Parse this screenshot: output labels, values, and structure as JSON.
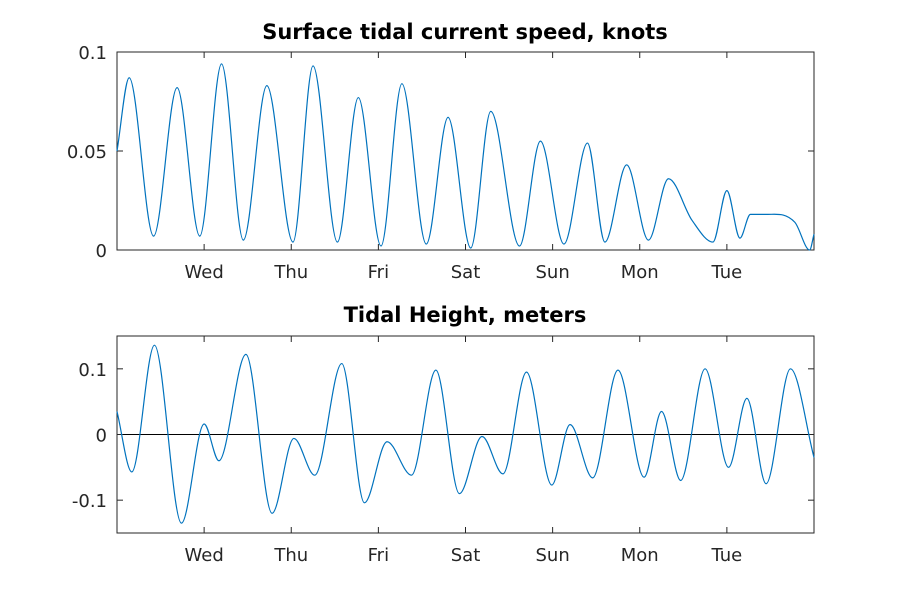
{
  "chart_data": [
    {
      "type": "line",
      "title": "Surface tidal current speed, knots",
      "xlabel": "",
      "ylabel": "",
      "x_unit": "days",
      "xlim": [
        0,
        8
      ],
      "ylim": [
        0,
        0.1
      ],
      "grid": false,
      "x_ticks": [
        {
          "x": 1,
          "label": "Wed"
        },
        {
          "x": 2,
          "label": "Thu"
        },
        {
          "x": 3,
          "label": "Fri"
        },
        {
          "x": 4,
          "label": "Sat"
        },
        {
          "x": 5,
          "label": "Sun"
        },
        {
          "x": 6,
          "label": "Mon"
        },
        {
          "x": 7,
          "label": "Tue"
        }
      ],
      "y_ticks": [
        {
          "y": 0,
          "label": "0"
        },
        {
          "y": 0.05,
          "label": "0.05"
        },
        {
          "y": 0.1,
          "label": "0.1"
        }
      ],
      "color": "#0072bd",
      "series": [
        {
          "x": [
            0,
            0.14,
            0.42,
            0.69,
            0.95,
            1.2,
            1.45,
            1.72,
            2.02,
            2.25,
            2.53,
            2.77,
            3.03,
            3.27,
            3.55,
            3.8,
            4.06,
            4.29,
            4.62,
            4.86,
            5.13,
            5.4,
            5.6,
            5.85,
            6.1,
            6.33,
            6.6,
            6.84,
            7.0,
            7.15,
            7.27,
            7.47,
            7.78,
            7.95,
            8.0
          ],
          "y": [
            0.05,
            0.087,
            0.007,
            0.082,
            0.007,
            0.094,
            0.005,
            0.083,
            0.004,
            0.093,
            0.004,
            0.077,
            0.002,
            0.084,
            0.003,
            0.067,
            0.001,
            0.07,
            0.002,
            0.055,
            0.003,
            0.054,
            0.004,
            0.043,
            0.005,
            0.036,
            0.015,
            0.004,
            0.03,
            0.006,
            0.018,
            0.018,
            0.014,
            0.0,
            0.008
          ]
        }
      ]
    },
    {
      "type": "line",
      "title": "Tidal Height, meters",
      "xlabel": "",
      "ylabel": "",
      "x_unit": "days",
      "xlim": [
        0,
        8
      ],
      "ylim": [
        -0.15,
        0.15
      ],
      "grid": false,
      "x_ticks": [
        {
          "x": 1,
          "label": "Wed"
        },
        {
          "x": 2,
          "label": "Thu"
        },
        {
          "x": 3,
          "label": "Fri"
        },
        {
          "x": 4,
          "label": "Sat"
        },
        {
          "x": 5,
          "label": "Sun"
        },
        {
          "x": 6,
          "label": "Mon"
        },
        {
          "x": 7,
          "label": "Tue"
        }
      ],
      "y_ticks": [
        {
          "y": -0.1,
          "label": "-0.1"
        },
        {
          "y": 0,
          "label": "0"
        },
        {
          "y": 0.1,
          "label": "0.1"
        }
      ],
      "zero_line": true,
      "color": "#0072bd",
      "series": [
        {
          "x": [
            0,
            0.17,
            0.43,
            0.74,
            1.0,
            1.17,
            1.48,
            1.78,
            2.03,
            2.27,
            2.58,
            2.84,
            3.1,
            3.38,
            3.66,
            3.93,
            4.19,
            4.43,
            4.7,
            4.99,
            5.2,
            5.46,
            5.75,
            6.05,
            6.25,
            6.47,
            6.75,
            7.02,
            7.23,
            7.45,
            7.73,
            8.0
          ],
          "y": [
            0.035,
            -0.057,
            0.136,
            -0.135,
            0.016,
            -0.04,
            0.122,
            -0.12,
            -0.006,
            -0.062,
            0.108,
            -0.104,
            -0.011,
            -0.062,
            0.098,
            -0.09,
            -0.003,
            -0.06,
            0.095,
            -0.077,
            0.015,
            -0.066,
            0.098,
            -0.065,
            0.035,
            -0.07,
            0.1,
            -0.05,
            0.055,
            -0.075,
            0.1,
            -0.035
          ]
        }
      ]
    }
  ]
}
